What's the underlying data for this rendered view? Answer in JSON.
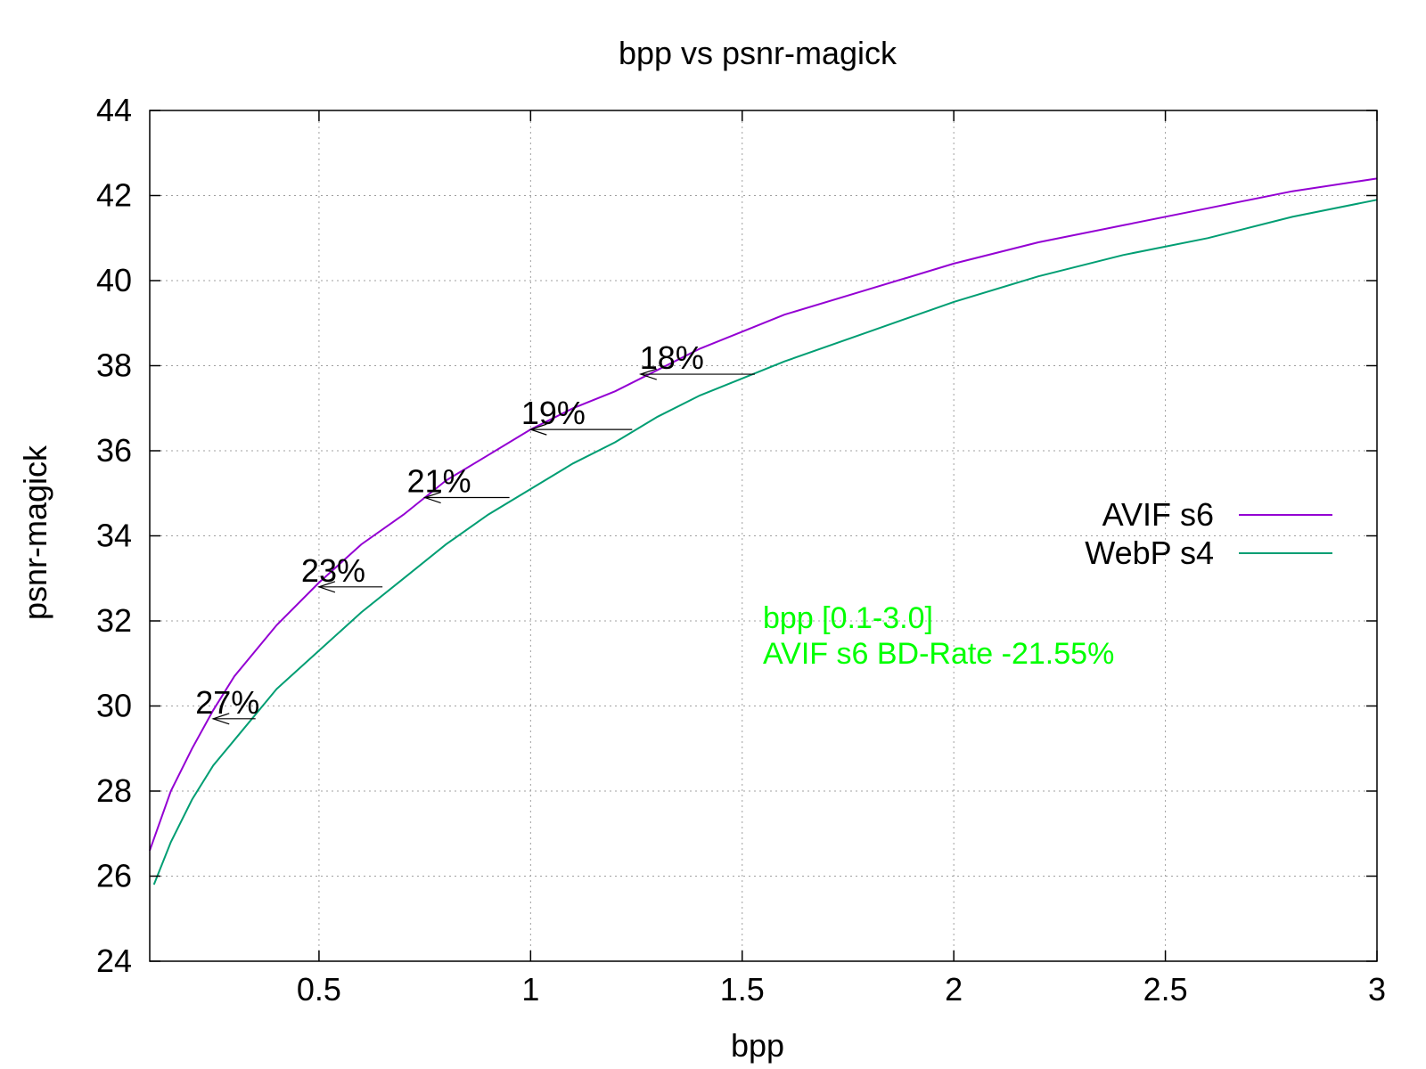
{
  "chart_data": {
    "type": "line",
    "title": "bpp vs psnr-magick",
    "xlabel": "bpp",
    "ylabel": "psnr-magick",
    "xlim": [
      0.1,
      3.0
    ],
    "ylim": [
      24,
      44
    ],
    "xticks": [
      0.5,
      1,
      1.5,
      2,
      2.5,
      3
    ],
    "xtick_labels": [
      "0.5",
      "1",
      "1.5",
      "2",
      "2.5",
      "3"
    ],
    "yticks": [
      24,
      26,
      28,
      30,
      32,
      34,
      36,
      38,
      40,
      42,
      44
    ],
    "ytick_labels": [
      "24",
      "26",
      "28",
      "30",
      "32",
      "34",
      "36",
      "38",
      "40",
      "42",
      "44"
    ],
    "grid": true,
    "legend_position": "right",
    "series": [
      {
        "name": "AVIF s6",
        "color": "#9400d3",
        "x": [
          0.1,
          0.15,
          0.2,
          0.25,
          0.3,
          0.4,
          0.5,
          0.6,
          0.7,
          0.8,
          0.9,
          1.0,
          1.1,
          1.2,
          1.3,
          1.4,
          1.5,
          1.6,
          1.8,
          2.0,
          2.2,
          2.4,
          2.6,
          2.8,
          3.0
        ],
        "y": [
          26.6,
          28.0,
          29.0,
          29.9,
          30.7,
          31.9,
          32.9,
          33.8,
          34.5,
          35.3,
          35.9,
          36.5,
          37.0,
          37.4,
          37.9,
          38.4,
          38.8,
          39.2,
          39.8,
          40.4,
          40.9,
          41.3,
          41.7,
          42.1,
          42.4
        ]
      },
      {
        "name": "WebP s4",
        "color": "#009e73",
        "x": [
          0.11,
          0.15,
          0.2,
          0.25,
          0.3,
          0.4,
          0.5,
          0.6,
          0.7,
          0.8,
          0.9,
          1.0,
          1.1,
          1.2,
          1.3,
          1.4,
          1.5,
          1.6,
          1.8,
          2.0,
          2.2,
          2.4,
          2.6,
          2.8,
          3.0
        ],
        "y": [
          25.8,
          26.8,
          27.8,
          28.6,
          29.2,
          30.4,
          31.3,
          32.2,
          33.0,
          33.8,
          34.5,
          35.1,
          35.7,
          36.2,
          36.8,
          37.3,
          37.7,
          38.1,
          38.8,
          39.5,
          40.1,
          40.6,
          41.0,
          41.5,
          41.9
        ]
      }
    ],
    "annotations": [
      {
        "text": "27%",
        "y": 29.7,
        "x_from": 0.35,
        "x_to": 0.25,
        "label_x": 0.25
      },
      {
        "text": "23%",
        "y": 32.8,
        "x_from": 0.65,
        "x_to": 0.5,
        "label_x": 0.5
      },
      {
        "text": "21%",
        "y": 34.9,
        "x_from": 0.95,
        "x_to": 0.75,
        "label_x": 0.75
      },
      {
        "text": "19%",
        "y": 36.5,
        "x_from": 1.24,
        "x_to": 1.0,
        "label_x": 1.02
      },
      {
        "text": "18%",
        "y": 37.8,
        "x_from": 1.53,
        "x_to": 1.26,
        "label_x": 1.3
      }
    ],
    "notes": {
      "color": "#00ff00",
      "lines": [
        "bpp [0.1-3.0]",
        "AVIF s6 BD-Rate -21.55%"
      ]
    }
  }
}
